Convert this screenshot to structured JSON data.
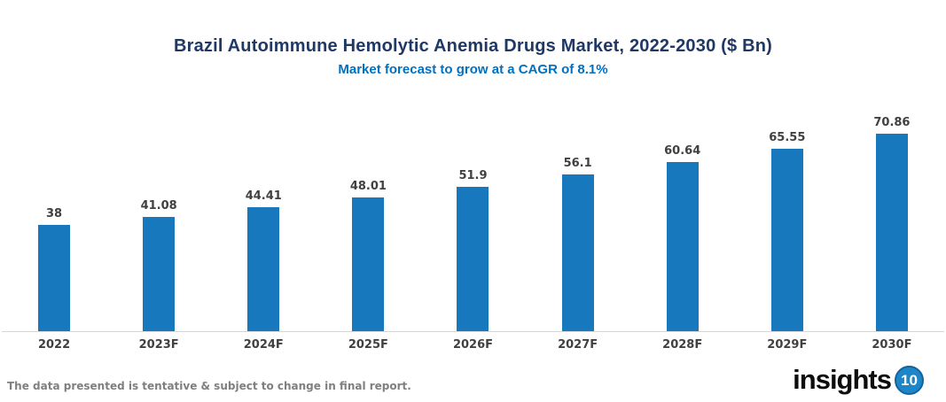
{
  "title": "Brazil Autoimmune Hemolytic Anemia Drugs Market, 2022-2030 ($ Bn)",
  "subtitle": "Market forecast to grow at a CAGR of 8.1%",
  "footer": {
    "disclaimer": "The data presented is tentative & subject to change in final report."
  },
  "logo": {
    "text": "insights",
    "badge": "10"
  },
  "colors": {
    "bar": "#1878BE",
    "title": "#1F3864",
    "subtitle": "#0070C0",
    "label": "#404040",
    "axis_line": "#D6D6D6",
    "footer_text": "#7F7F7F",
    "logo_badge": "#1C86C8"
  },
  "chart_data": {
    "type": "bar",
    "title": "Brazil Autoimmune Hemolytic Anemia Drugs Market, 2022-2030 ($ Bn)",
    "subtitle": "Market forecast to grow at a CAGR of 8.1%",
    "categories": [
      "2022",
      "2023F",
      "2024F",
      "2025F",
      "2026F",
      "2027F",
      "2028F",
      "2029F",
      "2030F"
    ],
    "values": [
      38,
      41.08,
      44.41,
      48.01,
      51.9,
      56.1,
      60.64,
      65.55,
      70.86
    ],
    "value_labels": [
      "38",
      "41.08",
      "44.41",
      "48.01",
      "51.9",
      "56.1",
      "60.64",
      "65.55",
      "70.86"
    ],
    "xlabel": "",
    "ylabel": "",
    "ylim": [
      0,
      80
    ],
    "grid": false,
    "legend": false,
    "bar_color": "#1878BE"
  }
}
